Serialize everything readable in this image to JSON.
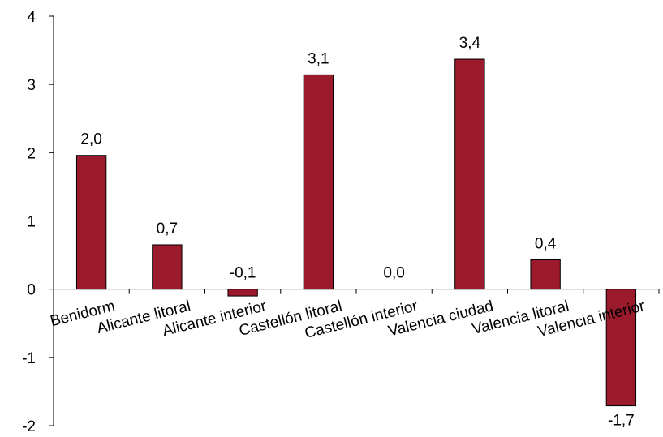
{
  "chart_data": {
    "type": "bar",
    "categories": [
      "Benidorm",
      "Alicante litoral",
      "Alicante interior",
      "Castellón litoral",
      "Castellón interior",
      "Valencia ciudad",
      "Valencia litoral",
      "Valencia interior"
    ],
    "values": [
      1.96,
      0.65,
      -0.1,
      3.14,
      0.0,
      3.37,
      0.43,
      -1.71
    ],
    "data_labels": [
      "2,0",
      "0,7",
      "-0,1",
      "3,1",
      "0,0",
      "3,4",
      "0,4",
      "-1,7"
    ],
    "yticks": [
      "-2",
      "-1",
      "0",
      "1",
      "2",
      "3",
      "4"
    ],
    "ylim": [
      -2,
      4
    ],
    "title": "",
    "xlabel": "",
    "ylabel": "",
    "grid": "none",
    "legend": "none",
    "bar_color": "#9b1b2c"
  }
}
